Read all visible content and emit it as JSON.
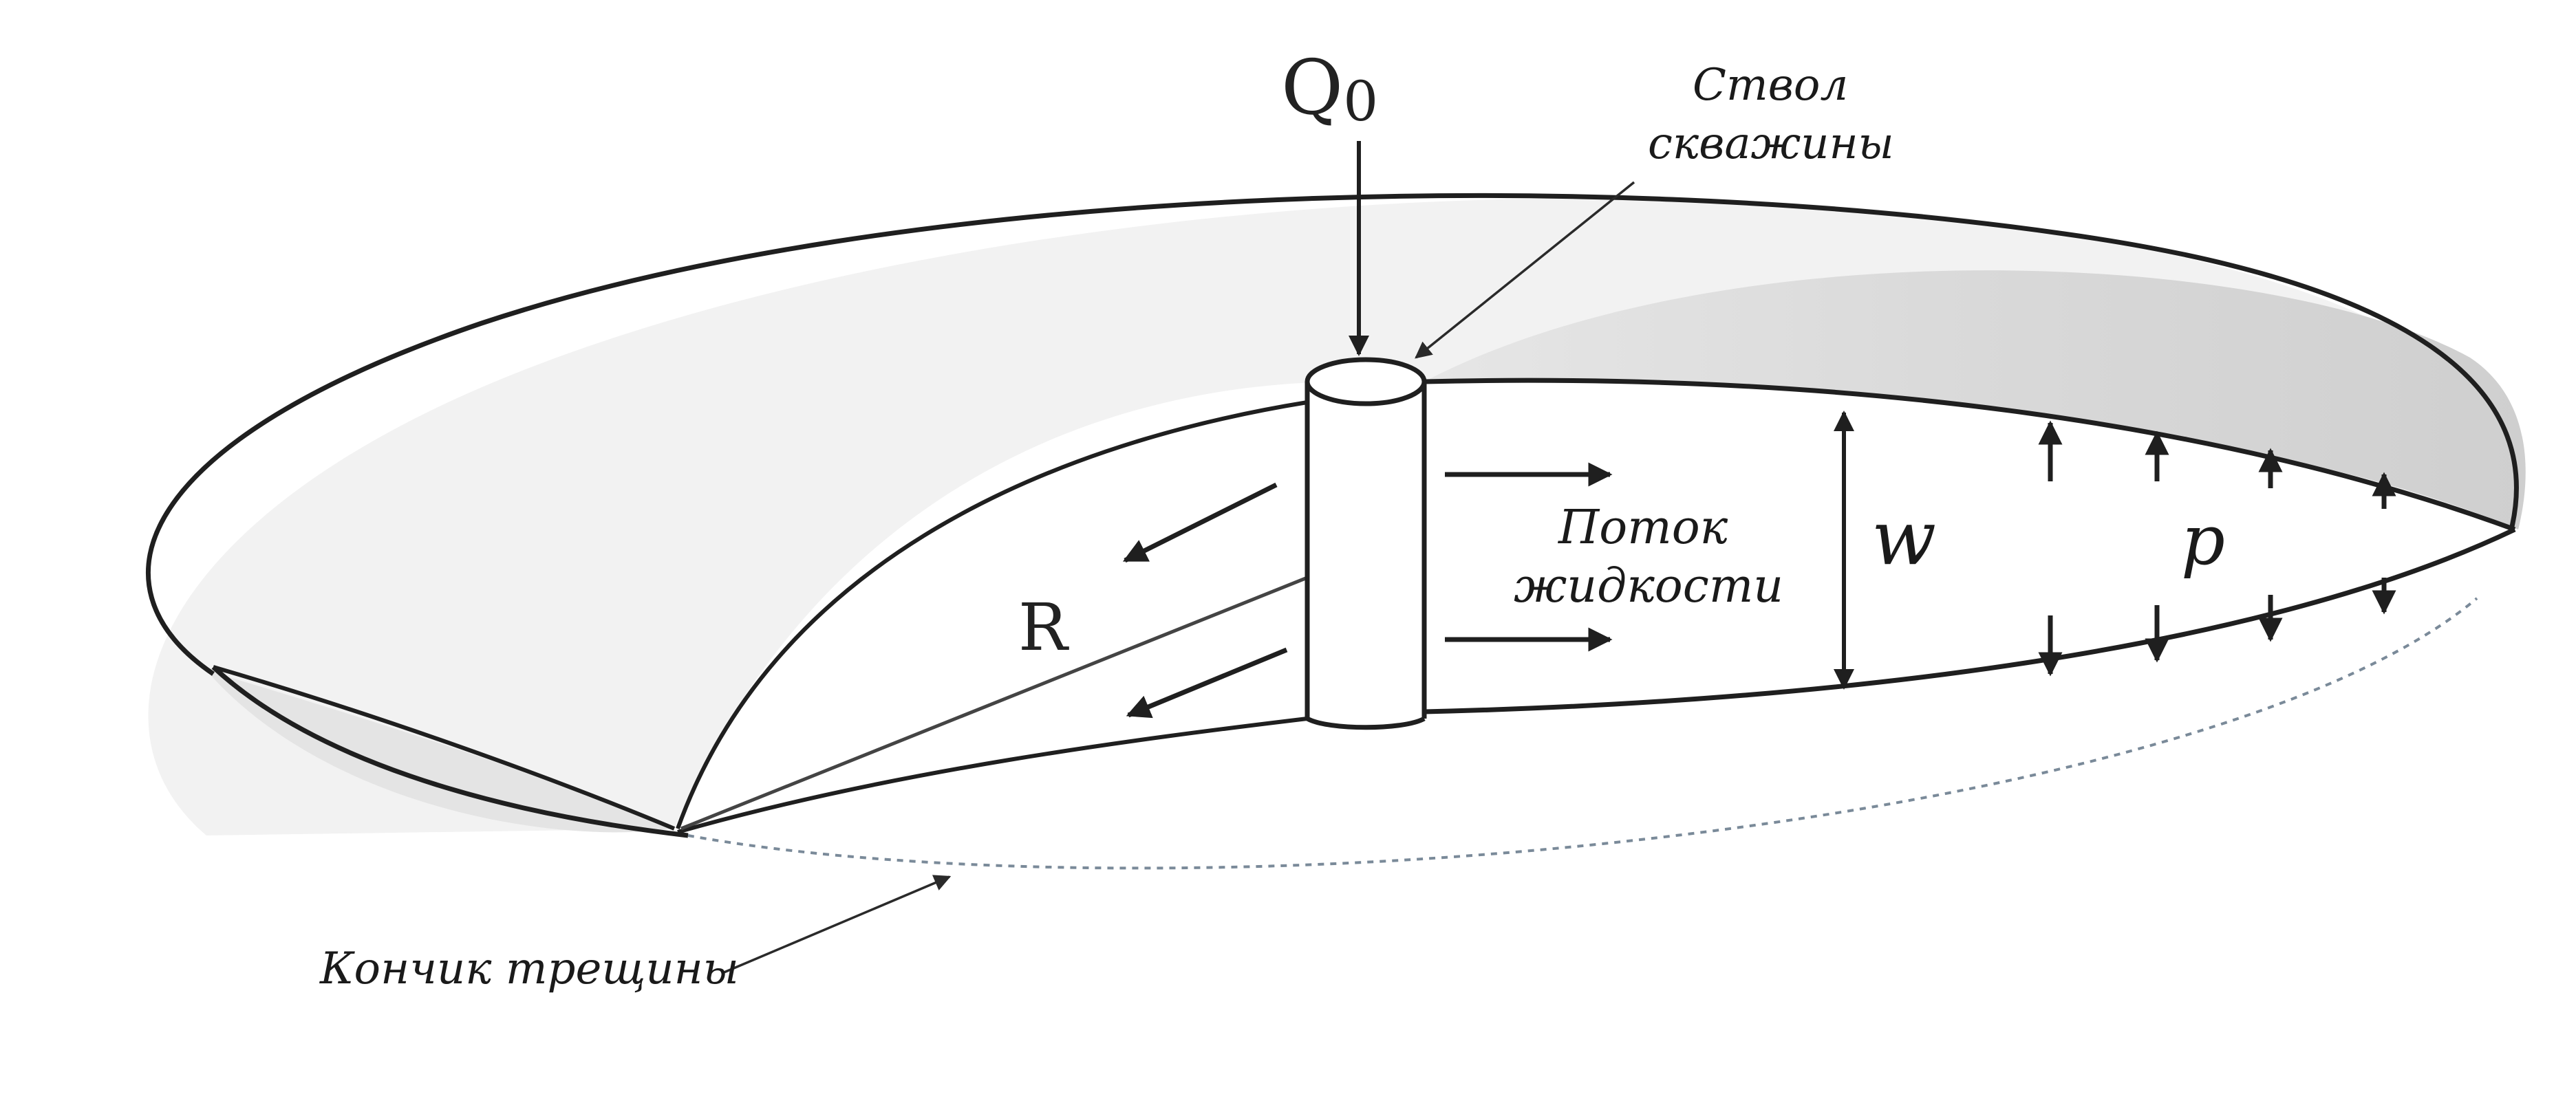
{
  "labels": {
    "flow_rate": "Q",
    "flow_rate_sub": "0",
    "wellbore_line1": "Ствол",
    "wellbore_line2": "скважины",
    "fluid_flow_line1": "Поток",
    "fluid_flow_line2": "жидкости",
    "width": "w",
    "pressure": "p",
    "radius": "R",
    "crack_tip": "Кончик трещины"
  },
  "colors": {
    "outline": "#1f1f1f",
    "fill_surface": "#f4f4f4",
    "fill_inner": "#d7d7d7",
    "fill_cross_section": "#ffffff",
    "dashed_edge": "#7a8a99"
  }
}
